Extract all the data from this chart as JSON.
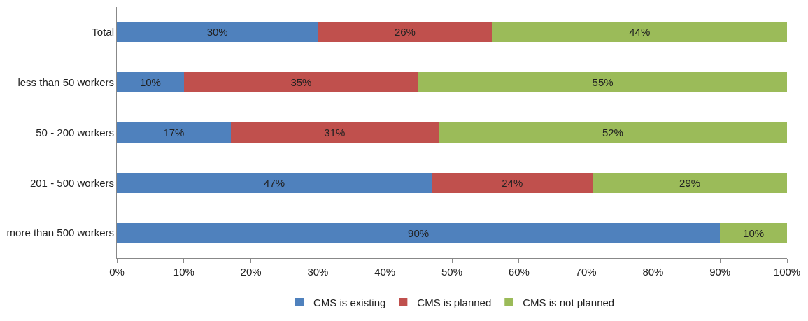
{
  "chart_data": {
    "type": "bar",
    "orientation": "horizontal",
    "stacked": true,
    "categories": [
      "Total",
      "less than 50 workers",
      "50 - 200 workers",
      "201 - 500 workers",
      "more than 500 workers"
    ],
    "series": [
      {
        "name": "CMS is existing",
        "color": "#4f81bd",
        "values": [
          30,
          10,
          17,
          47,
          90
        ],
        "value_labels": [
          "30%",
          "10%",
          "17%",
          "47%",
          "90%"
        ]
      },
      {
        "name": "CMS is planned",
        "color": "#c0504d",
        "values": [
          26,
          35,
          31,
          24,
          0
        ],
        "value_labels": [
          "26%",
          "35%",
          "31%",
          "24%",
          null
        ]
      },
      {
        "name": "CMS is not planned",
        "color": "#9bbb59",
        "values": [
          44,
          55,
          52,
          29,
          10
        ],
        "value_labels": [
          "44%",
          "55%",
          "52%",
          "29%",
          "10%"
        ]
      }
    ],
    "xlim": [
      0,
      100
    ],
    "xticks": [
      {
        "value": 0,
        "label": "0%"
      },
      {
        "value": 10,
        "label": "10%"
      },
      {
        "value": 20,
        "label": "20%"
      },
      {
        "value": 30,
        "label": "30%"
      },
      {
        "value": 40,
        "label": "40%"
      },
      {
        "value": 50,
        "label": "50%"
      },
      {
        "value": 60,
        "label": "60%"
      },
      {
        "value": 70,
        "label": "70%"
      },
      {
        "value": 80,
        "label": "80%"
      },
      {
        "value": 90,
        "label": "90%"
      },
      {
        "value": 100,
        "label": "100%"
      }
    ],
    "legend": "bottom"
  }
}
